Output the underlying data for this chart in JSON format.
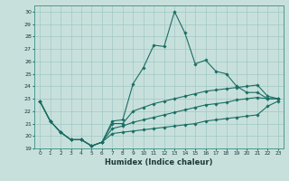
{
  "xlabel": "Humidex (Indice chaleur)",
  "bg_color": "#c8e0dc",
  "grid_color": "#a0c8c4",
  "line_color": "#1a6e64",
  "xlim": [
    -0.5,
    23.5
  ],
  "ylim": [
    19,
    30.5
  ],
  "yticks": [
    19,
    20,
    21,
    22,
    23,
    24,
    25,
    26,
    27,
    28,
    29,
    30
  ],
  "xticks": [
    0,
    1,
    2,
    3,
    4,
    5,
    6,
    7,
    8,
    9,
    10,
    11,
    12,
    13,
    14,
    15,
    16,
    17,
    18,
    19,
    20,
    21,
    22,
    23
  ],
  "series": [
    [
      22.8,
      21.2,
      20.3,
      19.7,
      19.7,
      19.2,
      19.5,
      21.2,
      21.3,
      24.2,
      25.5,
      27.3,
      27.2,
      30.0,
      28.3,
      25.8,
      26.1,
      25.2,
      25.0,
      24.0,
      23.5,
      23.5,
      23.0,
      23.0
    ],
    [
      22.8,
      21.2,
      20.3,
      19.7,
      19.7,
      19.2,
      19.5,
      21.0,
      21.0,
      22.0,
      22.3,
      22.6,
      22.8,
      23.0,
      23.2,
      23.4,
      23.6,
      23.7,
      23.8,
      23.9,
      24.0,
      24.1,
      23.2,
      23.0
    ],
    [
      22.8,
      21.2,
      20.3,
      19.7,
      19.7,
      19.2,
      19.5,
      20.6,
      20.8,
      21.1,
      21.3,
      21.5,
      21.7,
      21.9,
      22.1,
      22.3,
      22.5,
      22.6,
      22.7,
      22.9,
      23.0,
      23.1,
      23.0,
      23.0
    ],
    [
      22.8,
      21.2,
      20.3,
      19.7,
      19.7,
      19.2,
      19.5,
      20.2,
      20.3,
      20.4,
      20.5,
      20.6,
      20.7,
      20.8,
      20.9,
      21.0,
      21.2,
      21.3,
      21.4,
      21.5,
      21.6,
      21.7,
      22.4,
      22.8
    ]
  ]
}
